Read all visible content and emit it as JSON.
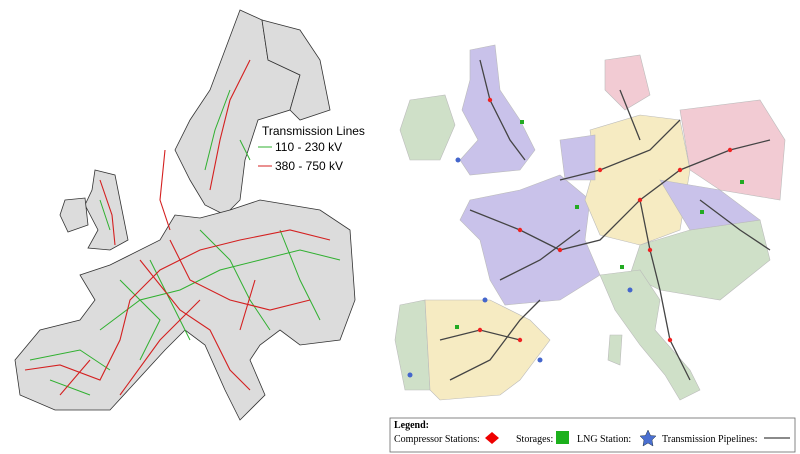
{
  "left_map": {
    "legend_title": "Transmission Lines",
    "entries": [
      "110 - 230 kV",
      "380 - 750 kV"
    ]
  },
  "right_map": {
    "legend": {
      "title": "Legend:",
      "compressor": "Compressor Stations:",
      "storages": "Storages:",
      "lng": "LNG Station:",
      "pipelines": "Transmission Pipelines:"
    }
  }
}
